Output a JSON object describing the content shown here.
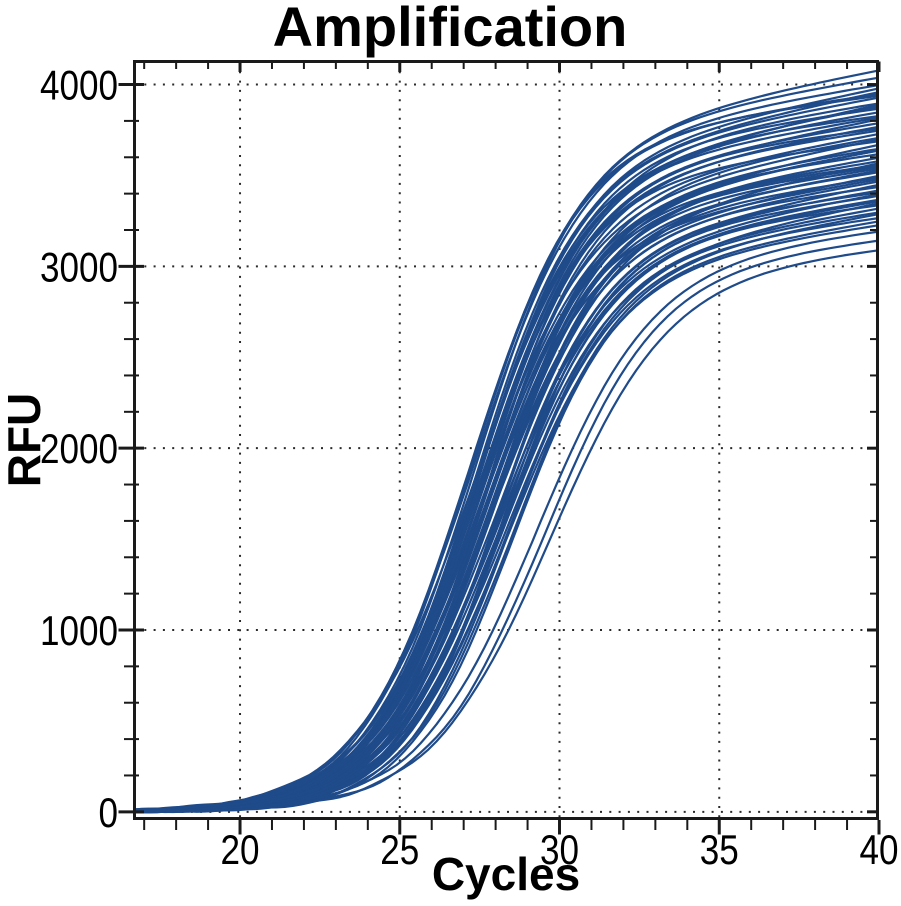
{
  "title": "Amplification",
  "colors": {
    "curve": "#1f4b8a",
    "axis": "#1a1a1a",
    "grid": "#2a2a2a",
    "text": "#000000",
    "background": "#ffffff"
  },
  "chart_data": {
    "type": "line",
    "title": "Amplification",
    "xlabel": "Cycles",
    "ylabel": "RFU",
    "xlim": [
      16.65,
      40
    ],
    "ylim": [
      -45,
      4135
    ],
    "x_major_ticks": [
      20,
      25,
      30,
      35,
      40
    ],
    "x_minor_tick_step": 1,
    "y_major_ticks": [
      0,
      1000,
      2000,
      3000,
      4000
    ],
    "y_minor_tick_step": 200,
    "x_gridlines": [
      20,
      25,
      30,
      35
    ],
    "y_gridlines": [
      0,
      1000,
      2000,
      3000,
      4000
    ],
    "grid_style": "dotted",
    "legend": "none",
    "n_curves": 60,
    "curve_description": "qPCR amplification sigmoids: baseline ~0 RFU until cycle ~21, exponential rise crossing 1000 RFU near cycle 25-26 and 2000 RFU near cycles 27.6-30.9, plateau 3100-4080 RFU at cycle 40",
    "model": "RFU(c) = (F - s*(40 - c0) + s*max(0, c - c0)) / (1 + exp(-k*(c - c0))) ; small baseline noise",
    "sample_step_cycles": 0.25,
    "series_format": [
      "c0_midpoint_cycle",
      "k_slope",
      "F_rfu_at_cycle_40",
      "s_plateau_drift_rfu_per_cycle"
    ],
    "series": [
      [
        27.1,
        0.58,
        4080,
        34
      ],
      [
        27.25,
        0.6,
        4040,
        30
      ],
      [
        27.15,
        0.57,
        4000,
        28
      ],
      [
        27.35,
        0.62,
        3980,
        36
      ],
      [
        27.05,
        0.59,
        3950,
        25
      ],
      [
        27.3,
        0.61,
        3930,
        32
      ],
      [
        27.45,
        0.56,
        3900,
        27
      ],
      [
        27.2,
        0.63,
        3890,
        38
      ],
      [
        27.35,
        0.58,
        3870,
        24
      ],
      [
        27.5,
        0.6,
        3850,
        30
      ],
      [
        27.25,
        0.55,
        3830,
        22
      ],
      [
        27.55,
        0.64,
        3810,
        35
      ],
      [
        27.4,
        0.59,
        3790,
        28
      ],
      [
        27.6,
        0.61,
        3770,
        31
      ],
      [
        27.3,
        0.57,
        3750,
        26
      ],
      [
        27.55,
        0.62,
        3730,
        33
      ],
      [
        27.7,
        0.58,
        3710,
        29
      ],
      [
        27.35,
        0.6,
        3690,
        23
      ],
      [
        27.75,
        0.63,
        3670,
        36
      ],
      [
        27.5,
        0.56,
        3650,
        27
      ],
      [
        27.8,
        0.61,
        3640,
        32
      ],
      [
        27.45,
        0.58,
        3620,
        25
      ],
      [
        27.85,
        0.6,
        3600,
        30
      ],
      [
        27.6,
        0.62,
        3580,
        28
      ],
      [
        27.9,
        0.57,
        3570,
        34
      ],
      [
        27.55,
        0.59,
        3550,
        24
      ],
      [
        27.95,
        0.63,
        3530,
        31
      ],
      [
        27.7,
        0.6,
        3520,
        27
      ],
      [
        27.4,
        0.58,
        3500,
        33
      ],
      [
        28.0,
        0.62,
        3490,
        26
      ],
      [
        27.65,
        0.58,
        3470,
        30
      ],
      [
        28.05,
        0.64,
        3450,
        35
      ],
      [
        27.75,
        0.57,
        3440,
        23
      ],
      [
        28.15,
        0.61,
        3420,
        29
      ],
      [
        27.85,
        0.59,
        3400,
        32
      ],
      [
        28.2,
        0.62,
        3390,
        25
      ],
      [
        27.95,
        0.58,
        3370,
        28
      ],
      [
        28.25,
        0.6,
        3350,
        34
      ],
      [
        28.1,
        0.57,
        3340,
        22
      ],
      [
        28.3,
        0.63,
        3320,
        30
      ],
      [
        28.1,
        0.59,
        3300,
        27
      ],
      [
        28.4,
        0.61,
        3290,
        31
      ],
      [
        28.2,
        0.57,
        3270,
        24
      ],
      [
        28.45,
        0.62,
        3250,
        29
      ],
      [
        28.25,
        0.58,
        3230,
        26
      ],
      [
        29.15,
        0.55,
        3200,
        21
      ],
      [
        29.4,
        0.56,
        3150,
        20
      ],
      [
        29.6,
        0.54,
        3100,
        18
      ],
      [
        27.2,
        0.62,
        3960,
        37
      ],
      [
        27.35,
        0.59,
        3880,
        33
      ],
      [
        27.55,
        0.58,
        3760,
        22
      ],
      [
        27.3,
        0.6,
        3700,
        35
      ],
      [
        27.85,
        0.56,
        3560,
        21
      ],
      [
        27.5,
        0.63,
        3480,
        30
      ],
      [
        28.0,
        0.59,
        3410,
        24
      ],
      [
        28.15,
        0.61,
        3360,
        28
      ],
      [
        27.7,
        0.6,
        3540,
        26
      ],
      [
        27.45,
        0.58,
        3640,
        31
      ],
      [
        27.25,
        0.61,
        3820,
        29
      ],
      [
        27.1,
        0.6,
        3940,
        23
      ]
    ]
  }
}
